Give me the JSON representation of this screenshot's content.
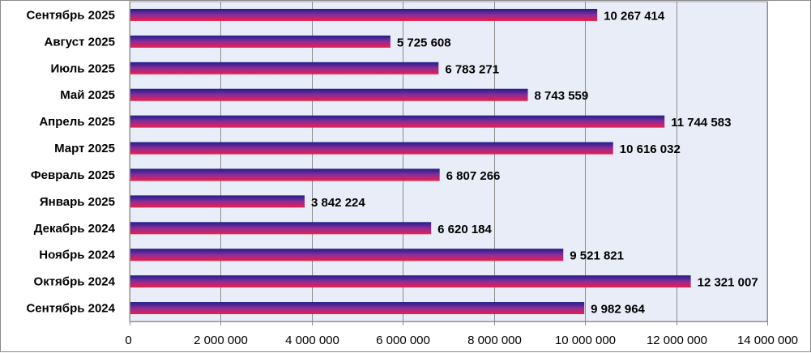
{
  "chart_data": {
    "type": "bar",
    "orientation": "horizontal",
    "title": "",
    "xlabel": "",
    "ylabel": "",
    "categories": [
      "Сентябрь 2025",
      "Август 2025",
      "Июль 2025",
      "Май 2025",
      "Апрель 2025",
      "Март 2025",
      "Февраль 2025",
      "Январь 2025",
      "Декабрь 2024",
      "Ноябрь 2024",
      "Октябрь 2024",
      "Сентябрь 2024"
    ],
    "values": [
      10267414,
      5725608,
      6783271,
      8743559,
      11744583,
      10616032,
      6807266,
      3842224,
      6620184,
      9521821,
      12321007,
      9982964
    ],
    "value_labels": [
      "10 267 414",
      "5 725 608",
      "6 783 271",
      "8 743 559",
      "11 744 583",
      "10 616 032",
      "6 807 266",
      "3 842 224",
      "6 620 184",
      "9 521 821",
      "12 321 007",
      "9 982 964"
    ],
    "xlim": [
      0,
      14000000
    ],
    "ticks": [
      0,
      2000000,
      4000000,
      6000000,
      8000000,
      10000000,
      12000000,
      14000000
    ],
    "tick_labels": [
      "0",
      "2 000 000",
      "4 000 000",
      "6 000 000",
      "8 000 000",
      "10 000 000",
      "12 000 000",
      "14 000 000"
    ],
    "grid": true,
    "legend": "none",
    "colors": {
      "bar_top": "#1f1f8a",
      "bar_mid": "#8a2d9a",
      "bar_bottom": "#ee1e46",
      "plot_background": "#e9edf7",
      "gridline": "#8c8c8c"
    }
  }
}
